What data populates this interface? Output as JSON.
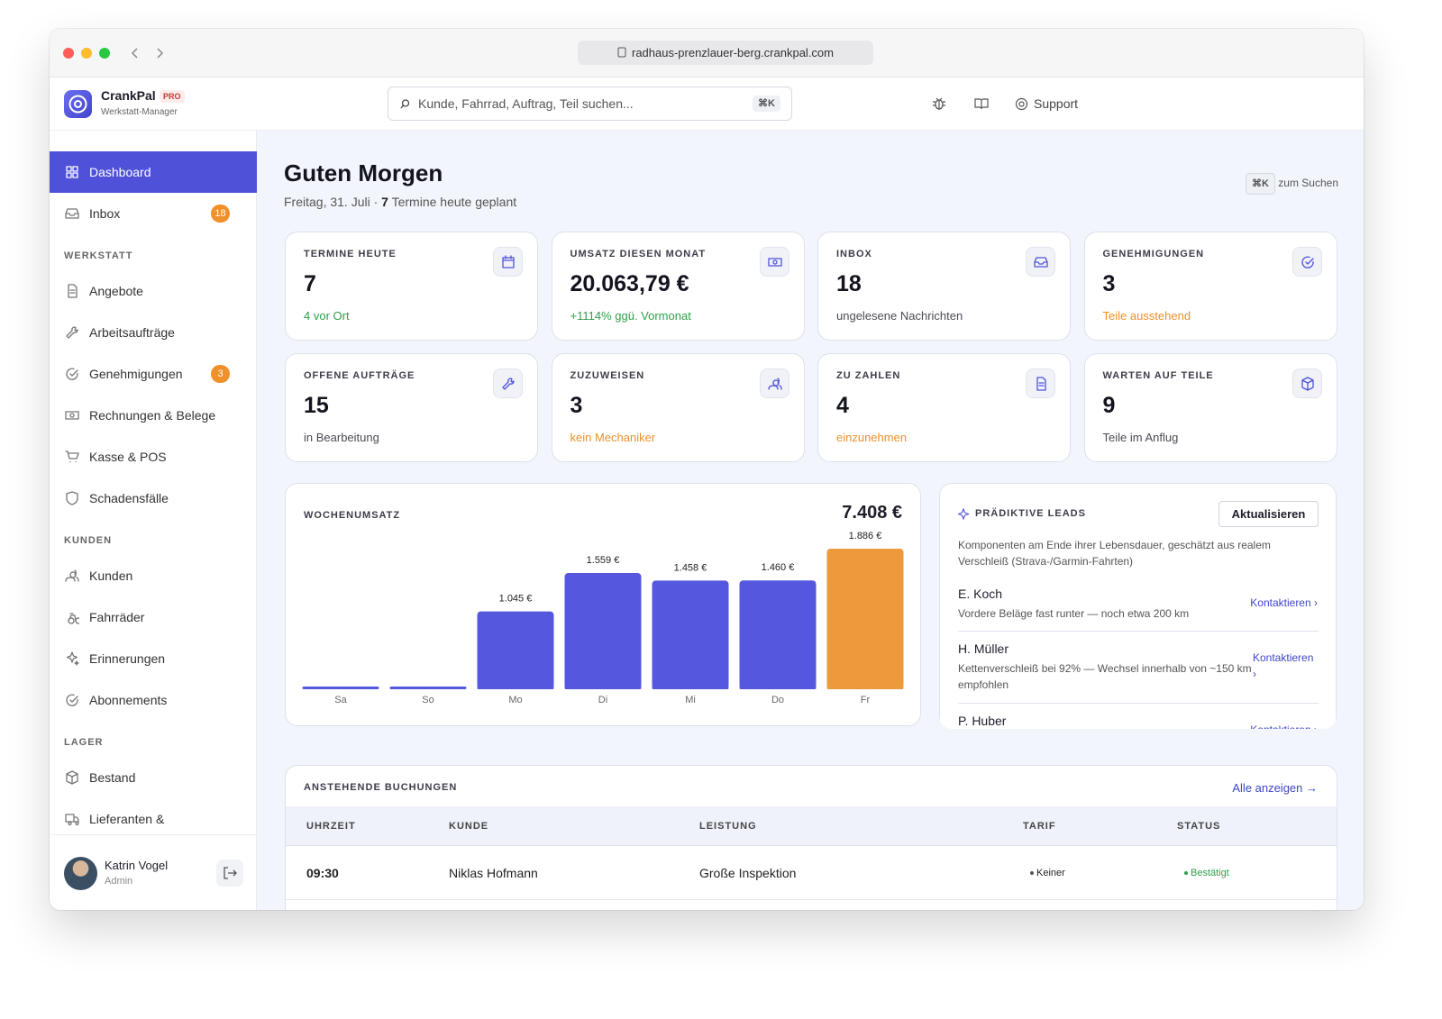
{
  "browser": {
    "url": "radhaus-prenzlauer-berg.crankpal.com"
  },
  "brand": {
    "name": "CrankPal",
    "badge": "PRO",
    "subtitle": "Werkstatt-Manager"
  },
  "search": {
    "placeholder": "Kunde, Fahrrad, Auftrag, Teil suchen...",
    "shortcut": "⌘K"
  },
  "header": {
    "support": "Support"
  },
  "sidebar": {
    "main": [
      {
        "label": "Dashboard"
      },
      {
        "label": "Inbox",
        "badge": 18
      }
    ],
    "sections": [
      {
        "title": "WERKSTATT",
        "items": [
          {
            "label": "Angebote"
          },
          {
            "label": "Arbeitsaufträge"
          },
          {
            "label": "Genehmigungen",
            "badge": 3
          },
          {
            "label": "Rechnungen & Belege"
          },
          {
            "label": "Kasse & POS"
          },
          {
            "label": "Schadensfälle"
          }
        ]
      },
      {
        "title": "KUNDEN",
        "items": [
          {
            "label": "Kunden"
          },
          {
            "label": "Fahrräder"
          },
          {
            "label": "Erinnerungen"
          },
          {
            "label": "Abonnements"
          }
        ]
      },
      {
        "title": "LAGER",
        "items": [
          {
            "label": "Bestand"
          },
          {
            "label": "Lieferanten &"
          }
        ]
      }
    ]
  },
  "user": {
    "name": "Katrin Vogel",
    "role": "Admin"
  },
  "greeting": {
    "title": "Guten Morgen",
    "date": "Freitag, 31. Juli ·",
    "count": "7",
    "suffix": "Termine heute geplant"
  },
  "search_hint": {
    "key": "⌘K",
    "label": "zum Suchen"
  },
  "stats": [
    {
      "label": "TERMINE HEUTE",
      "value": "7",
      "note": "4 vor Ort",
      "note_color": "#2e9e4a"
    },
    {
      "label": "UMSATZ DIESEN MONAT",
      "value": "20.063,79 €",
      "note": "+1114% ggü. Vormonat",
      "note_color": "#2e9e4a"
    },
    {
      "label": "INBOX",
      "value": "18",
      "note": "ungelesene Nachrichten",
      "note_color": "#4a4a55"
    },
    {
      "label": "GENEHMIGUNGEN",
      "value": "3",
      "note": "Teile ausstehend",
      "note_color": "#f0902a"
    },
    {
      "label": "OFFENE AUFTRÄGE",
      "value": "15",
      "note": "in Bearbeitung",
      "note_color": "#4a4a55"
    },
    {
      "label": "ZUZUWEISEN",
      "value": "3",
      "note": "kein Mechaniker",
      "note_color": "#f0902a"
    },
    {
      "label": "ZU ZAHLEN",
      "value": "4",
      "note": "einzunehmen",
      "note_color": "#f0902a"
    },
    {
      "label": "WARTEN AUF TEILE",
      "value": "9",
      "note": "Teile im Anflug",
      "note_color": "#4a4a55"
    }
  ],
  "chart_data": {
    "type": "bar",
    "title": "WOCHENUMSATZ",
    "total": "7.408 €",
    "categories": [
      "Sa",
      "So",
      "Mo",
      "Di",
      "Mi",
      "Do",
      "Fr"
    ],
    "values": [
      0,
      0,
      1045,
      1559,
      1458,
      1460,
      1886
    ],
    "value_labels": [
      null,
      null,
      "1.045 €",
      "1.559 €",
      "1.458 €",
      "1.460 €",
      "1.886 €"
    ],
    "colors": [
      "#5558df",
      "#5558df",
      "#5558df",
      "#5558df",
      "#5558df",
      "#5558df",
      "#ec9a3c"
    ]
  },
  "leads": {
    "title": "PRÄDIKTIVE LEADS",
    "button": "Aktualisieren",
    "description": "Komponenten am Ende ihrer Lebensdauer, geschätzt aus realem Verschleiß (Strava-/Garmin-Fahrten)",
    "items": [
      {
        "name": "E. Koch",
        "text": "Vordere Beläge fast runter — noch etwa 200 km",
        "action": "Kontaktieren ›"
      },
      {
        "name": "H. Müller",
        "text": "Kettenverschleiß bei 92% — Wechsel innerhalb von ~150 km empfohlen",
        "action": "Kontaktieren ›"
      },
      {
        "name": "P. Huber",
        "action": "Kontaktieren ›"
      }
    ]
  },
  "bookings": {
    "title": "ANSTEHENDE BUCHUNGEN",
    "link": "Alle anzeigen →",
    "columns": [
      "UHRZEIT",
      "KUNDE",
      "LEISTUNG",
      "TARIF",
      "STATUS"
    ],
    "rows": [
      [
        "09:30",
        "Niklas Hofmann",
        "Große Inspektion",
        "Keiner",
        "Bestätigt"
      ]
    ]
  }
}
